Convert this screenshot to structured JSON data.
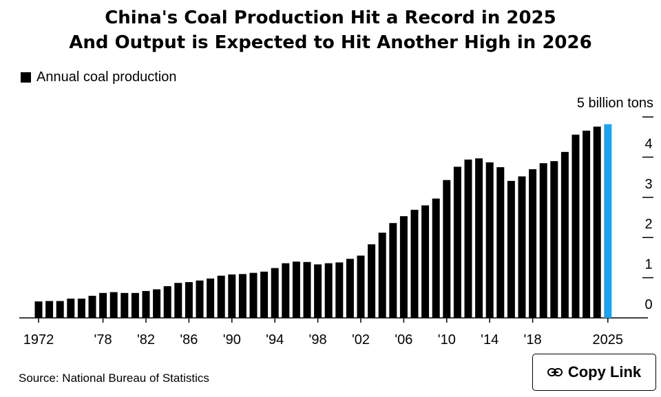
{
  "chart_data": {
    "type": "bar",
    "title": [
      "China's Coal Production Hit a Record in 2025",
      "And Output is Expected to Hit Another High in 2026"
    ],
    "legend": [
      {
        "name": "Annual coal production",
        "color": "#000000"
      }
    ],
    "y_unit_label": "5 billion tons",
    "y_ticks": [
      "0",
      "1",
      "2",
      "3",
      "4"
    ],
    "ylim": [
      0,
      5
    ],
    "x_tick_labels": [
      {
        "year": 1972,
        "label": "1972"
      },
      {
        "year": 1978,
        "label": "'78"
      },
      {
        "year": 1982,
        "label": "'82"
      },
      {
        "year": 1986,
        "label": "'86"
      },
      {
        "year": 1990,
        "label": "'90"
      },
      {
        "year": 1994,
        "label": "'94"
      },
      {
        "year": 1998,
        "label": "'98"
      },
      {
        "year": 2002,
        "label": "'02"
      },
      {
        "year": 2006,
        "label": "'06"
      },
      {
        "year": 2010,
        "label": "'10"
      },
      {
        "year": 2014,
        "label": "'14"
      },
      {
        "year": 2018,
        "label": "'18"
      },
      {
        "year": 2025,
        "label": "2025"
      }
    ],
    "series": [
      {
        "name": "Annual coal production",
        "color": "#000000",
        "highlight_color": "#1aa3f0",
        "highlight_year": 2025,
        "x": [
          1972,
          1973,
          1974,
          1975,
          1976,
          1977,
          1978,
          1979,
          1980,
          1981,
          1982,
          1983,
          1984,
          1985,
          1986,
          1987,
          1988,
          1989,
          1990,
          1991,
          1992,
          1993,
          1994,
          1995,
          1996,
          1997,
          1998,
          1999,
          2000,
          2001,
          2002,
          2003,
          2004,
          2005,
          2006,
          2007,
          2008,
          2009,
          2010,
          2011,
          2012,
          2013,
          2014,
          2015,
          2016,
          2017,
          2018,
          2019,
          2020,
          2021,
          2022,
          2023,
          2024,
          2025
        ],
        "values": [
          0.41,
          0.42,
          0.42,
          0.48,
          0.48,
          0.55,
          0.62,
          0.64,
          0.62,
          0.62,
          0.67,
          0.71,
          0.79,
          0.87,
          0.89,
          0.93,
          0.98,
          1.05,
          1.08,
          1.09,
          1.12,
          1.15,
          1.24,
          1.36,
          1.4,
          1.39,
          1.33,
          1.36,
          1.38,
          1.47,
          1.55,
          1.83,
          2.12,
          2.36,
          2.53,
          2.69,
          2.8,
          2.97,
          3.43,
          3.76,
          3.94,
          3.97,
          3.87,
          3.75,
          3.41,
          3.52,
          3.7,
          3.85,
          3.9,
          4.13,
          4.56,
          4.66,
          4.76,
          4.82
        ]
      }
    ]
  },
  "source": "Source: National Bureau of Statistics",
  "copy_link": {
    "label": "Copy Link",
    "icon": "link-icon"
  }
}
